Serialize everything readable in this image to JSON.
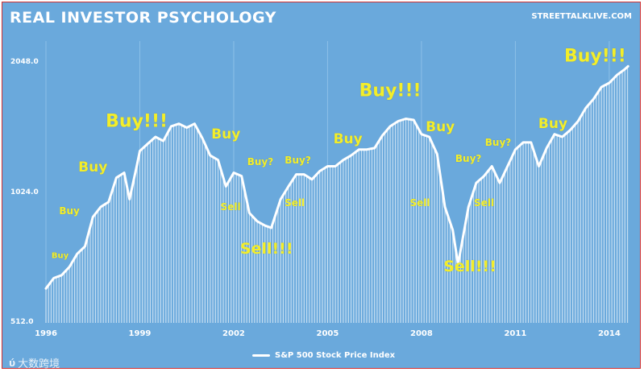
{
  "header": {
    "title": "REAL INVESTOR PSYCHOLOGY",
    "source": "STREETTALKLIVE.COM"
  },
  "watermark": {
    "logo_text": "ύ",
    "text": "大数跨境"
  },
  "chart_data": {
    "type": "area",
    "scale": "log",
    "ylim": [
      512,
      2300
    ],
    "xlim": [
      1996,
      2014.75
    ],
    "y_ticks": [
      {
        "value": 512,
        "label": "512.0"
      },
      {
        "value": 1024,
        "label": "1024.0"
      },
      {
        "value": 2048,
        "label": "2048.0"
      }
    ],
    "x_ticks": [
      {
        "value": 1996,
        "label": "1996"
      },
      {
        "value": 1999,
        "label": "1999"
      },
      {
        "value": 2002,
        "label": "2002"
      },
      {
        "value": 2005,
        "label": "2005"
      },
      {
        "value": 2008,
        "label": "2008"
      },
      {
        "value": 2011,
        "label": "2011"
      },
      {
        "value": 2014,
        "label": "2014"
      }
    ],
    "grid": true,
    "legend_position": "bottom",
    "series": [
      {
        "name": "S&P 500 Stock Price Index",
        "color": "#ffffff",
        "points": [
          [
            1996.0,
            615
          ],
          [
            1996.25,
            650
          ],
          [
            1996.5,
            660
          ],
          [
            1996.75,
            690
          ],
          [
            1997.0,
            740
          ],
          [
            1997.25,
            770
          ],
          [
            1997.5,
            900
          ],
          [
            1997.75,
            950
          ],
          [
            1998.0,
            975
          ],
          [
            1998.25,
            1110
          ],
          [
            1998.5,
            1140
          ],
          [
            1998.67,
            990
          ],
          [
            1998.9,
            1180
          ],
          [
            1999.0,
            1280
          ],
          [
            1999.25,
            1330
          ],
          [
            1999.5,
            1380
          ],
          [
            1999.75,
            1350
          ],
          [
            2000.0,
            1460
          ],
          [
            2000.25,
            1480
          ],
          [
            2000.5,
            1450
          ],
          [
            2000.75,
            1480
          ],
          [
            2001.0,
            1370
          ],
          [
            2001.25,
            1250
          ],
          [
            2001.5,
            1220
          ],
          [
            2001.75,
            1060
          ],
          [
            2002.0,
            1140
          ],
          [
            2002.25,
            1120
          ],
          [
            2002.5,
            920
          ],
          [
            2002.75,
            880
          ],
          [
            2003.0,
            860
          ],
          [
            2003.2,
            850
          ],
          [
            2003.5,
            990
          ],
          [
            2003.75,
            1060
          ],
          [
            2004.0,
            1130
          ],
          [
            2004.25,
            1130
          ],
          [
            2004.5,
            1100
          ],
          [
            2004.75,
            1150
          ],
          [
            2005.0,
            1180
          ],
          [
            2005.25,
            1180
          ],
          [
            2005.5,
            1220
          ],
          [
            2005.75,
            1250
          ],
          [
            2006.0,
            1290
          ],
          [
            2006.25,
            1290
          ],
          [
            2006.5,
            1300
          ],
          [
            2006.75,
            1390
          ],
          [
            2007.0,
            1460
          ],
          [
            2007.25,
            1500
          ],
          [
            2007.5,
            1520
          ],
          [
            2007.75,
            1510
          ],
          [
            2008.0,
            1400
          ],
          [
            2008.25,
            1380
          ],
          [
            2008.5,
            1260
          ],
          [
            2008.75,
            950
          ],
          [
            2009.0,
            840
          ],
          [
            2009.17,
            700
          ],
          [
            2009.5,
            950
          ],
          [
            2009.75,
            1080
          ],
          [
            2010.0,
            1120
          ],
          [
            2010.25,
            1180
          ],
          [
            2010.5,
            1080
          ],
          [
            2010.75,
            1180
          ],
          [
            2011.0,
            1290
          ],
          [
            2011.25,
            1340
          ],
          [
            2011.5,
            1340
          ],
          [
            2011.75,
            1180
          ],
          [
            2012.0,
            1300
          ],
          [
            2012.25,
            1400
          ],
          [
            2012.5,
            1380
          ],
          [
            2012.75,
            1430
          ],
          [
            2013.0,
            1500
          ],
          [
            2013.25,
            1610
          ],
          [
            2013.5,
            1690
          ],
          [
            2013.75,
            1800
          ],
          [
            2014.0,
            1840
          ],
          [
            2014.25,
            1920
          ],
          [
            2014.5,
            1980
          ],
          [
            2014.6,
            2010
          ]
        ]
      }
    ],
    "annotations": [
      {
        "text": "Buy",
        "x": 1996.45,
        "y": 730,
        "size": 10
      },
      {
        "text": "Buy",
        "x": 1996.75,
        "y": 930,
        "size": 12
      },
      {
        "text": "Buy",
        "x": 1997.5,
        "y": 1170,
        "size": 17
      },
      {
        "text": "Buy!!!",
        "x": 1998.9,
        "y": 1500,
        "size": 22
      },
      {
        "text": "Buy",
        "x": 2001.75,
        "y": 1400,
        "size": 17
      },
      {
        "text": "Sell",
        "x": 2001.9,
        "y": 950,
        "size": 12
      },
      {
        "text": "Buy?",
        "x": 2002.85,
        "y": 1210,
        "size": 12
      },
      {
        "text": "Sell!!!",
        "x": 2003.05,
        "y": 760,
        "size": 19
      },
      {
        "text": "Buy?",
        "x": 2004.05,
        "y": 1220,
        "size": 12
      },
      {
        "text": "Sell",
        "x": 2003.95,
        "y": 970,
        "size": 12
      },
      {
        "text": "Buy",
        "x": 2005.65,
        "y": 1360,
        "size": 17
      },
      {
        "text": "Buy!!!",
        "x": 2007.0,
        "y": 1760,
        "size": 22
      },
      {
        "text": "Buy",
        "x": 2008.6,
        "y": 1450,
        "size": 17
      },
      {
        "text": "Sell",
        "x": 2007.95,
        "y": 970,
        "size": 12
      },
      {
        "text": "Buy?",
        "x": 2009.5,
        "y": 1230,
        "size": 12
      },
      {
        "text": "Sell!!!",
        "x": 2009.55,
        "y": 690,
        "size": 19
      },
      {
        "text": "Sell",
        "x": 2010.0,
        "y": 970,
        "size": 12
      },
      {
        "text": "Buy?",
        "x": 2010.45,
        "y": 1340,
        "size": 12
      },
      {
        "text": "Buy",
        "x": 2012.2,
        "y": 1480,
        "size": 17
      },
      {
        "text": "Buy!!!",
        "x": 2013.55,
        "y": 2120,
        "size": 22
      }
    ]
  }
}
